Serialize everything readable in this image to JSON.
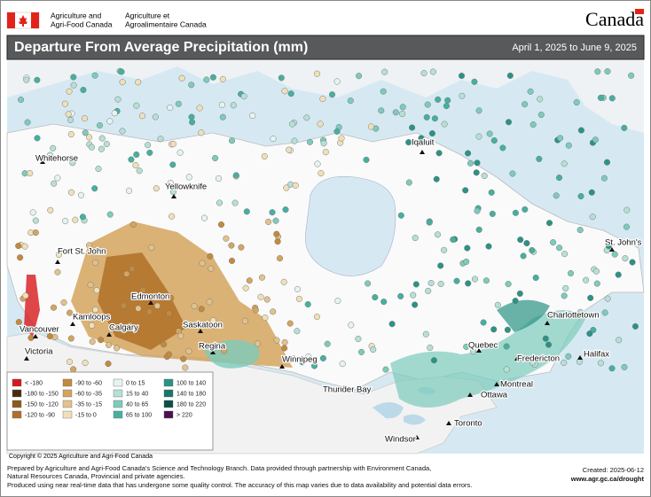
{
  "header": {
    "org_en": [
      "Agriculture and",
      "Agri-Food Canada"
    ],
    "org_fr": [
      "Agriculture et",
      "Agroalimentaire Canada"
    ],
    "wordmark": "Canada"
  },
  "title": "Departure From Average Precipitation (mm)",
  "date_range": "April 1, 2025 to June 9, 2025",
  "cities": [
    "Whitehorse",
    "Yellowknife",
    "Iqaluit",
    "Fort St. John",
    "Edmonton",
    "Kamloops",
    "Calgary",
    "Saskatoon",
    "Vancouver",
    "Victoria",
    "Regina",
    "Winnipeg",
    "Thunder Bay",
    "Quebec",
    "Montreal",
    "Ottawa",
    "Toronto",
    "Windsor",
    "Fredericton",
    "Halifax",
    "Charlottetown",
    "St. John's"
  ],
  "legend": [
    {
      "label": "< -180",
      "color": "#d7191c"
    },
    {
      "label": "-180 to -150",
      "color": "#4a2a0f"
    },
    {
      "label": "-150 to -120",
      "color": "#8a5a1e"
    },
    {
      "label": "-120 to -90",
      "color": "#b07028"
    },
    {
      "label": "-90 to -60",
      "color": "#c48a3c"
    },
    {
      "label": "-60 to -35",
      "color": "#d4a55e"
    },
    {
      "label": "-35 to -15",
      "color": "#e2c28a"
    },
    {
      "label": "-15 to 0",
      "color": "#f0e0b8"
    },
    {
      "label": "0 to 15",
      "color": "#e6f4f1"
    },
    {
      "label": "15 to 40",
      "color": "#b5e0d6"
    },
    {
      "label": "40 to 65",
      "color": "#7ccbbb"
    },
    {
      "label": "65 to 100",
      "color": "#45b0a0"
    },
    {
      "label": "100 to 140",
      "color": "#2a9385"
    },
    {
      "label": "140 to 180",
      "color": "#18766b"
    },
    {
      "label": "180 to 220",
      "color": "#0b4f48"
    },
    {
      "label": "> 220",
      "color": "#4a1050"
    }
  ],
  "copyright": "Copyright © 2025 Agriculture and Agri-Food Canada",
  "footer": {
    "lines": [
      "Prepared by Agriculture and Agri-Food Canada's Science and Technology Branch. Data provided through partnership with Environment Canada,",
      "Natural Resources Canada, Provincial and private agencies.",
      "Produced using near real-time data that has undergone some quality control. The accuracy of this map varies due to data availability and potential data errors."
    ],
    "created": "Created: 2025-06-12",
    "url": "www.agr.gc.ca/drought"
  }
}
